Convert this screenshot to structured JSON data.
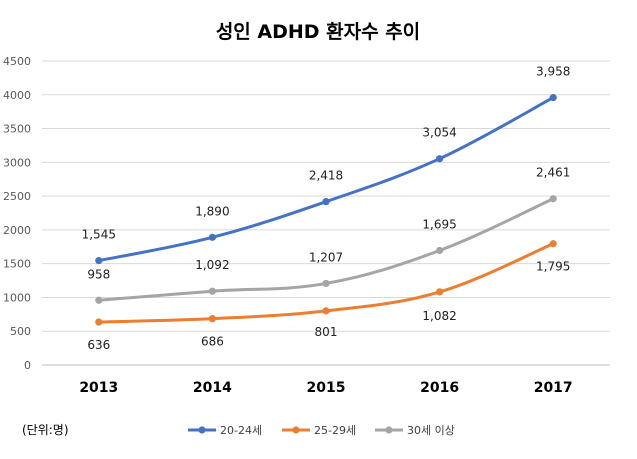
{
  "chart_data": {
    "type": "line",
    "title": "성인 ADHD 환자수 추이",
    "unit_note": "(단위:명)",
    "categories": [
      "2013",
      "2014",
      "2015",
      "2016",
      "2017"
    ],
    "ylim": [
      0,
      4500
    ],
    "yticks": [
      "4500",
      "4000",
      "3500",
      "3000",
      "2500",
      "2000",
      "1500",
      "1000",
      "500",
      "0"
    ],
    "grid": true,
    "legend_position": "bottom",
    "series": [
      {
        "name": "20-24세",
        "color": "#4472C4",
        "values": [
          1545,
          1890,
          2418,
          3054,
          3958
        ],
        "labels": [
          "1,545",
          "1,890",
          "2,418",
          "3,054",
          "3,958"
        ]
      },
      {
        "name": "25-29세",
        "color": "#ED7D31",
        "values": [
          636,
          686,
          801,
          1082,
          1795
        ],
        "labels": [
          "636",
          "686",
          "801",
          "1,082",
          "1,795"
        ]
      },
      {
        "name": "30세 이상",
        "color": "#A5A5A5",
        "values": [
          958,
          1092,
          1207,
          1695,
          2461
        ],
        "labels": [
          "958",
          "1,092",
          "1,207",
          "1,695",
          "2,461"
        ]
      }
    ]
  }
}
